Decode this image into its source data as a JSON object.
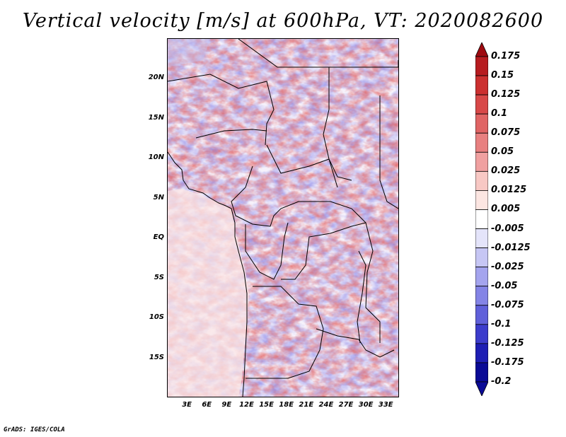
{
  "title": "Vertical velocity [m/s] at 600hPa, VT: 2020082600",
  "footer": "GrADS: IGES/COLA",
  "map": {
    "lon_range": [
      0,
      35
    ],
    "lat_range": [
      -20,
      25
    ],
    "lat_ticks": [
      "20N",
      "15N",
      "10N",
      "5N",
      "EQ",
      "5S",
      "10S",
      "15S"
    ],
    "lon_ticks": [
      "3E",
      "6E",
      "9E",
      "12E",
      "15E",
      "18E",
      "21E",
      "24E",
      "27E",
      "30E",
      "33E"
    ]
  },
  "colorbar": {
    "labels": [
      "0.175",
      "0.15",
      "0.125",
      "0.1",
      "0.075",
      "0.05",
      "0.025",
      "0.0125",
      "0.005",
      "-0.005",
      "-0.0125",
      "-0.025",
      "-0.05",
      "-0.075",
      "-0.1",
      "-0.125",
      "-0.175",
      "-0.2"
    ],
    "colors": [
      "#9e0a10",
      "#b71c20",
      "#cc3030",
      "#d84848",
      "#e06464",
      "#e88080",
      "#f0a0a0",
      "#f8c8c4",
      "#fce6e2",
      "#ffffff",
      "#e4e4fa",
      "#c6c6f4",
      "#a4a4ee",
      "#8484e6",
      "#6060da",
      "#3c3ccc",
      "#1e1eb4",
      "#0a0a96",
      "#0a0a96"
    ]
  }
}
